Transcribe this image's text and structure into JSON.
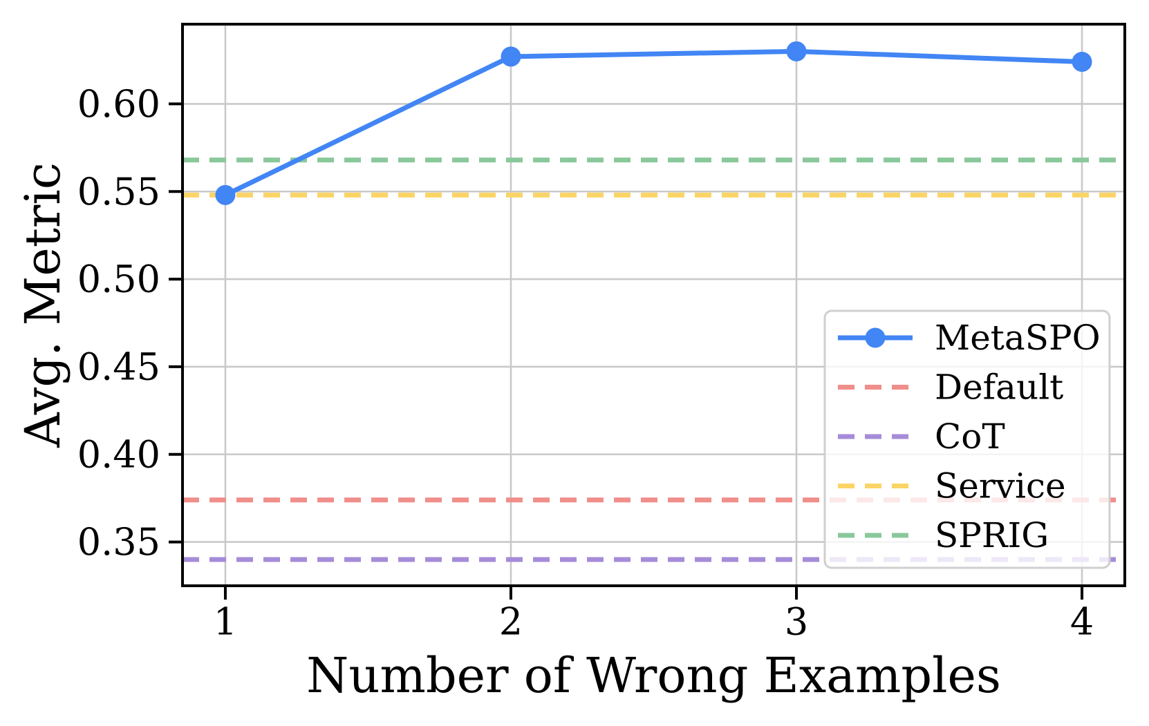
{
  "figure": {
    "background": "#ffffff"
  },
  "chart_data": {
    "type": "line",
    "title": "",
    "xlabel": "Number of Wrong Examples",
    "ylabel": "Avg. Metric",
    "x": [
      1,
      2,
      3,
      4
    ],
    "xtick_labels": [
      "1",
      "2",
      "3",
      "4"
    ],
    "ytick_values": [
      0.35,
      0.4,
      0.45,
      0.5,
      0.55,
      0.6
    ],
    "ytick_labels": [
      "0.35",
      "0.40",
      "0.45",
      "0.50",
      "0.55",
      "0.60"
    ],
    "xlim": [
      0.85,
      4.15
    ],
    "ylim": [
      0.325,
      0.6455
    ],
    "grid": true,
    "series": [
      {
        "name": "MetaSPO",
        "style": "solid",
        "marker": "circle",
        "color": "#4285F4",
        "values": [
          0.548,
          0.627,
          0.63,
          0.624
        ]
      }
    ],
    "baselines": [
      {
        "name": "Default",
        "style": "dashed",
        "color": "#F08E8A",
        "value": 0.374
      },
      {
        "name": "CoT",
        "style": "dashed",
        "color": "#A58CD8",
        "value": 0.34
      },
      {
        "name": "Service",
        "style": "dashed",
        "color": "#FAD465",
        "value": 0.548
      },
      {
        "name": "SPRIG",
        "style": "dashed",
        "color": "#8AC89C",
        "value": 0.568
      }
    ],
    "legend": {
      "position": "center-right",
      "entries": [
        "MetaSPO",
        "Default",
        "CoT",
        "Service",
        "SPRIG"
      ]
    },
    "colors": {
      "grid": "#C9C9C9",
      "spine": "#000000",
      "legend_border": "#CFCFCF",
      "legend_background": "rgba(255,255,255,0.8)",
      "text": "#000000"
    }
  }
}
